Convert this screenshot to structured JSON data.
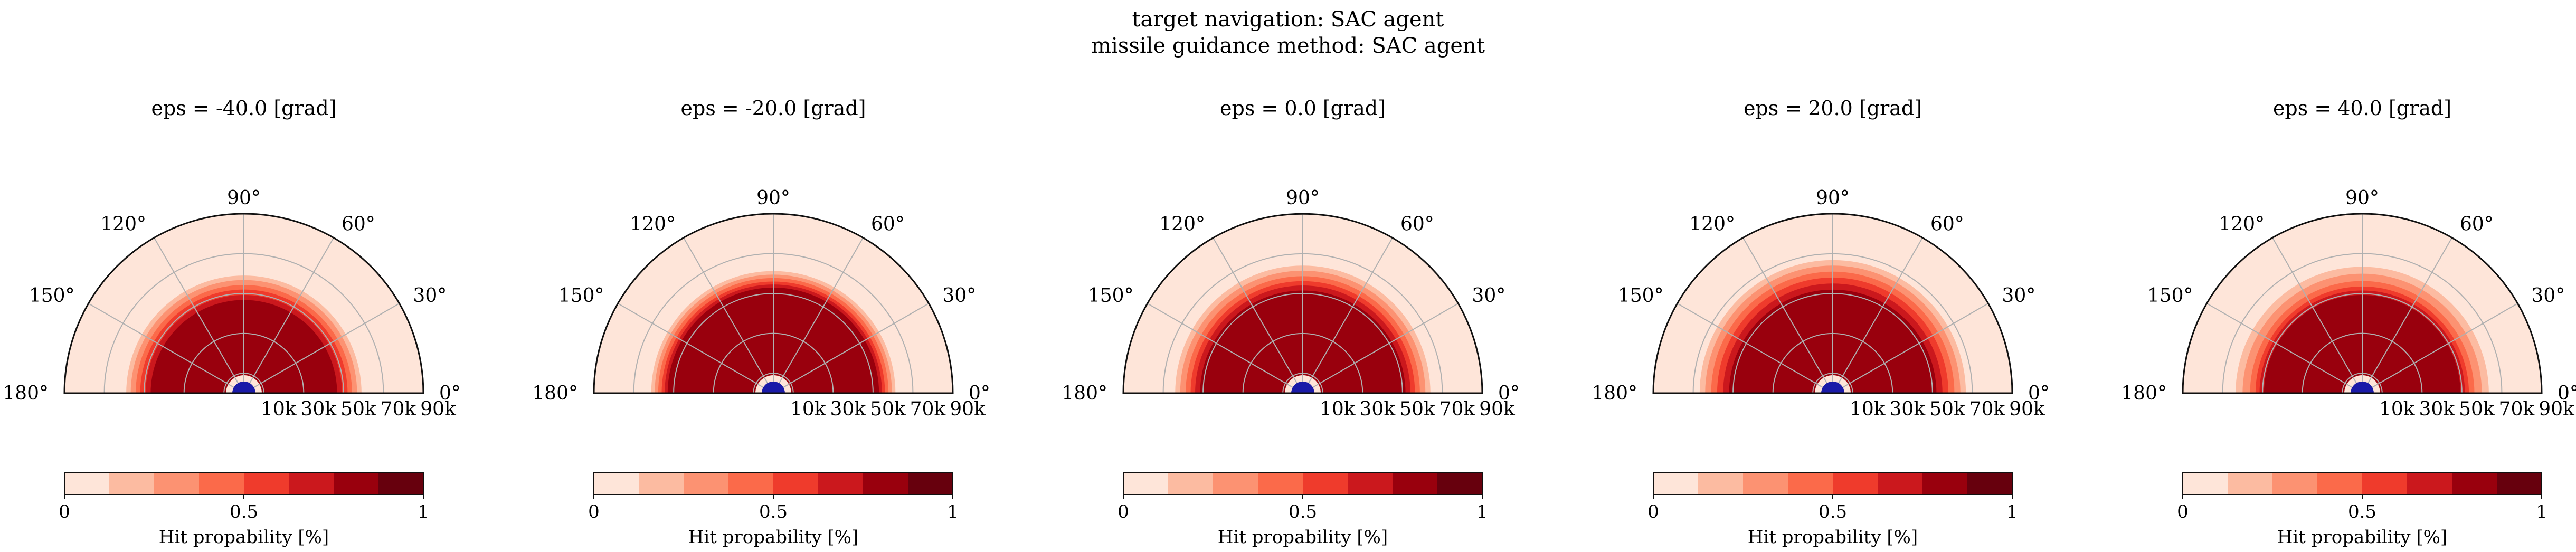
{
  "figure": {
    "suptitle_line1": "target navigation: SAC agent",
    "suptitle_line2": "missile guidance method: SAC agent"
  },
  "colors": {
    "levels": [
      "#fee5d9",
      "#fcbba1",
      "#fc9272",
      "#fb6a4a",
      "#ef3b2c",
      "#cb181d",
      "#99000d",
      "#67000d"
    ],
    "missile_marker": "#1a1aa8",
    "grid": "#b0b0b0",
    "frame": "#111111"
  },
  "chart_data": [
    {
      "type": "polar-contour",
      "title": "eps = -40.0 [grad]",
      "theta_ticks": [
        "0°",
        "30°",
        "60°",
        "90°",
        "120°",
        "150°",
        "180°"
      ],
      "r_ticks": [
        "10k",
        "30k",
        "50k",
        "70k",
        "90k"
      ],
      "r_range": [
        0,
        90000
      ],
      "theta_range_deg": [
        0,
        180
      ],
      "hit_probability_profile": [
        {
          "r": 5000,
          "p": 0.15
        },
        {
          "r": 10000,
          "p": 0.6
        },
        {
          "r": 15000,
          "p": 1.0
        },
        {
          "r": 45000,
          "p": 1.0
        },
        {
          "r": 52000,
          "p": 0.6
        },
        {
          "r": 60000,
          "p": 0.1
        },
        {
          "r": 90000,
          "p": 0.05
        }
      ],
      "colorbar": {
        "ticks": [
          "0",
          "0.5",
          "1"
        ],
        "label": "Hit propability [%]"
      }
    },
    {
      "type": "polar-contour",
      "title": "eps = -20.0 [grad]",
      "theta_ticks": [
        "0°",
        "30°",
        "60°",
        "90°",
        "120°",
        "150°",
        "180°"
      ],
      "r_ticks": [
        "10k",
        "30k",
        "50k",
        "70k",
        "90k"
      ],
      "r_range": [
        0,
        90000
      ],
      "theta_range_deg": [
        0,
        180
      ],
      "hit_probability_profile": [
        {
          "r": 5000,
          "p": 0.2
        },
        {
          "r": 10000,
          "p": 0.7
        },
        {
          "r": 15000,
          "p": 1.0
        },
        {
          "r": 52000,
          "p": 1.0
        },
        {
          "r": 56000,
          "p": 0.6
        },
        {
          "r": 62000,
          "p": 0.1
        },
        {
          "r": 90000,
          "p": 0.05
        }
      ],
      "colorbar": {
        "ticks": [
          "0",
          "0.5",
          "1"
        ],
        "label": "Hit propability [%]"
      }
    },
    {
      "type": "polar-contour",
      "title": "eps = 0.0 [grad]",
      "theta_ticks": [
        "0°",
        "30°",
        "60°",
        "90°",
        "120°",
        "150°",
        "180°"
      ],
      "r_ticks": [
        "10k",
        "30k",
        "50k",
        "70k",
        "90k"
      ],
      "r_range": [
        0,
        90000
      ],
      "theta_range_deg": [
        0,
        180
      ],
      "hit_probability_profile": [
        {
          "r": 5000,
          "p": 0.6
        },
        {
          "r": 10000,
          "p": 1.0
        },
        {
          "r": 50000,
          "p": 1.0
        },
        {
          "r": 58000,
          "p": 0.5
        },
        {
          "r": 65000,
          "p": 0.1
        },
        {
          "r": 90000,
          "p": 0.05
        }
      ],
      "colorbar": {
        "ticks": [
          "0",
          "0.5",
          "1"
        ],
        "label": "Hit propability [%]"
      }
    },
    {
      "type": "polar-contour",
      "title": "eps = 20.0 [grad]",
      "theta_ticks": [
        "0°",
        "30°",
        "60°",
        "90°",
        "120°",
        "150°",
        "180°"
      ],
      "r_ticks": [
        "10k",
        "30k",
        "50k",
        "70k",
        "90k"
      ],
      "r_range": [
        0,
        90000
      ],
      "theta_range_deg": [
        0,
        180
      ],
      "hit_probability_profile": [
        {
          "r": 5000,
          "p": 0.6
        },
        {
          "r": 10000,
          "p": 1.0
        },
        {
          "r": 50000,
          "p": 1.0
        },
        {
          "r": 60000,
          "p": 0.5
        },
        {
          "r": 68000,
          "p": 0.1
        },
        {
          "r": 90000,
          "p": 0.05
        }
      ],
      "colorbar": {
        "ticks": [
          "0",
          "0.5",
          "1"
        ],
        "label": "Hit propability [%]"
      }
    },
    {
      "type": "polar-contour",
      "title": "eps = 40.0 [grad]",
      "theta_ticks": [
        "0°",
        "30°",
        "60°",
        "90°",
        "120°",
        "150°",
        "180°"
      ],
      "r_ticks": [
        "10k",
        "30k",
        "50k",
        "70k",
        "90k"
      ],
      "r_range": [
        0,
        90000
      ],
      "theta_range_deg": [
        0,
        180
      ],
      "hit_probability_profile": [
        {
          "r": 5000,
          "p": 0.2
        },
        {
          "r": 10000,
          "p": 0.7
        },
        {
          "r": 15000,
          "p": 1.0
        },
        {
          "r": 48000,
          "p": 1.0
        },
        {
          "r": 55000,
          "p": 0.5
        },
        {
          "r": 65000,
          "p": 0.1
        },
        {
          "r": 90000,
          "p": 0.05
        }
      ],
      "colorbar": {
        "ticks": [
          "0",
          "0.5",
          "1"
        ],
        "label": "Hit propability [%]"
      }
    }
  ]
}
